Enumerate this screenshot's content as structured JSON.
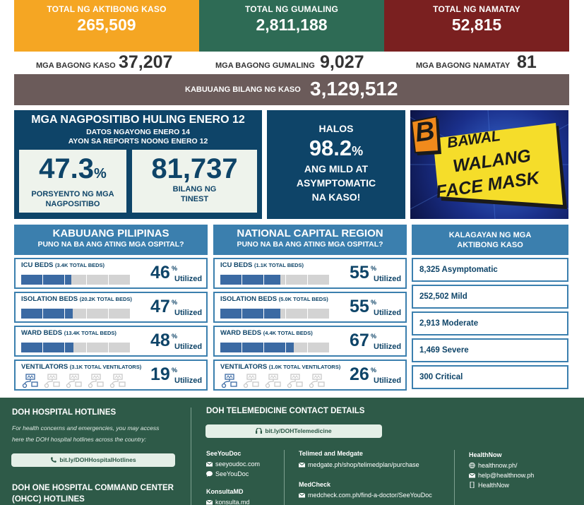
{
  "top": {
    "active_label": "TOTAL NG AKTIBONG KASO",
    "active_value": "265,509",
    "active_color": "#f5a623",
    "recovered_label": "TOTAL NG GUMALING",
    "recovered_value": "2,811,188",
    "recovered_color": "#2e6b55",
    "deaths_label": "TOTAL NG NAMATAY",
    "deaths_value": "52,815",
    "deaths_color": "#7a2020"
  },
  "new": {
    "cases_label": "MGA BAGONG KASO",
    "cases_value": "37,207",
    "recovered_label": "MGA BAGONG GUMALING",
    "recovered_value": "9,027",
    "deaths_label": "MGA BAGONG NAMATAY",
    "deaths_value": "81"
  },
  "total": {
    "label": "KABUUANG BILANG NG KASO",
    "value": "3,129,512"
  },
  "positivity": {
    "title": "MGA NAGPOSITIBO HULING ENERO 12",
    "sub1": "DATOS NGAYONG ENERO 14",
    "sub2": "AYON SA REPORTS NOONG ENERO 12",
    "rate_value": "47.3",
    "rate_unit": "%",
    "rate_cap1": "PORSYENTO NG MGA",
    "rate_cap2": "NAGPOSITIBO",
    "tested_value": "81,737",
    "tested_cap1": "BILANG NG",
    "tested_cap2": "TINEST"
  },
  "halos": {
    "word": "HALOS",
    "value": "98.2",
    "unit": "%",
    "d1": "ANG MILD AT",
    "d2": "ASYMPTOMATIC",
    "d3": "NA KASO!"
  },
  "mask": {
    "l1": "BAWAL",
    "l2": "WALANG",
    "l3": "FACE MASK"
  },
  "ph": {
    "title": "KABUUANG PILIPINAS",
    "sub": "PUNO NA BA ANG ATING MGA OSPITAL?",
    "rows": [
      {
        "name": "ICU BEDS",
        "total": "(3.4K TOTAL BEDS)",
        "pct": "46",
        "fill": 0.46
      },
      {
        "name": "ISOLATION BEDS",
        "total": "(20.2K TOTAL BEDS)",
        "pct": "47",
        "fill": 0.47
      },
      {
        "name": "WARD BEDS",
        "total": "(13.4K TOTAL BEDS)",
        "pct": "48",
        "fill": 0.48
      },
      {
        "name": "VENTILATORS",
        "total": "(3.1K TOTAL VENTILATORS)",
        "pct": "19",
        "fill": 0.19
      }
    ]
  },
  "ncr": {
    "title": "NATIONAL CAPITAL REGION",
    "sub": "PUNO NA BA ANG ATING MGA OSPITAL?",
    "rows": [
      {
        "name": "ICU BEDS",
        "total": "(1.1K TOTAL BEDS)",
        "pct": "55",
        "fill": 0.55
      },
      {
        "name": "ISOLATION BEDS",
        "total": "(5.0K TOTAL BEDS)",
        "pct": "55",
        "fill": 0.55
      },
      {
        "name": "WARD BEDS",
        "total": "(4.4K TOTAL BEDS)",
        "pct": "67",
        "fill": 0.67
      },
      {
        "name": "VENTILATORS",
        "total": "(1.0K TOTAL VENTILATORS)",
        "pct": "26",
        "fill": 0.26
      }
    ]
  },
  "util_sup": "%",
  "util_word": "Utilized",
  "kalagayan": {
    "title1": "KALAGAYAN NG MGA",
    "title2": "AKTIBONG KASO",
    "items": [
      "8,325 Asymptomatic",
      "252,502 Mild",
      "2,913 Moderate",
      "1,469 Severe",
      "300 Critical"
    ]
  },
  "footer": {
    "hotlines_title": "DOH HOSPITAL HOTLINES",
    "hotlines_desc1": "For health concerns and emergencies, you may access",
    "hotlines_desc2": "here the DOH hospital hotlines across the country:",
    "hotlines_link": "bit.ly/DOHHospitalHotlines",
    "ohcc_title1": "DOH ONE HOSPITAL COMMAND CENTER",
    "ohcc_title2": "(OHCC) HOTLINES",
    "tele_title": "DOH TELEMEDICINE CONTACT DETAILS",
    "tele_link": "bit.ly/DOHTelemedicine",
    "seeyoudoc": "SeeYouDoc",
    "seeyoudoc_mail": "seeyoudoc.com",
    "seeyoudoc_msg": "SeeYouDoc",
    "konsulta": "KonsultaMD",
    "konsulta_mail": "konsulta.md",
    "telimed": "Telimed and Medgate",
    "telimed_link": "medgate.ph/shop/telimedplan/purchase",
    "medcheck": "MedCheck",
    "medcheck_link": "medcheck.com.ph/find-a-doctor/SeeYouDoc",
    "healthnow": "HealthNow",
    "healthnow_web": "healthnow.ph/",
    "healthnow_mail": "help@healthnow.ph",
    "healthnow_app": "HealthNow"
  }
}
